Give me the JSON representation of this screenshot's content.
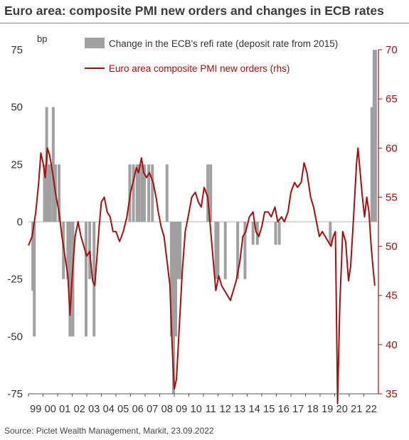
{
  "title": "Euro area: composite PMI new orders and changes in ECB rates",
  "source": "Source: Pictet Wealth Management, Markit, 23.09.2022",
  "colors": {
    "bars": "#a0a0a0",
    "line": "#a50f0f",
    "text": "#333333",
    "axis_right": "#a50f0f"
  },
  "chart_data": {
    "type": "bar+line",
    "left_axis": {
      "unit_label": "bp",
      "ylim": [
        -75,
        75
      ],
      "ticks": [
        75,
        50,
        25,
        0,
        -25,
        -50,
        -75
      ]
    },
    "right_axis": {
      "ylim": [
        35,
        70
      ],
      "ticks": [
        70,
        65,
        60,
        55,
        50,
        45,
        40,
        35
      ]
    },
    "x_axis": {
      "range": [
        1999,
        2023
      ],
      "tick_labels": [
        "99",
        "00",
        "01",
        "02",
        "03",
        "04",
        "05",
        "06",
        "07",
        "08",
        "09",
        "10",
        "11",
        "12",
        "13",
        "14",
        "15",
        "16",
        "17",
        "18",
        "19",
        "20",
        "21",
        "22"
      ]
    },
    "series": [
      {
        "name": "Change in the ECB's refi rate (deposit rate from 2015)",
        "type": "bar",
        "axis": "left",
        "points": [
          [
            1999.3,
            -30
          ],
          [
            1999.4,
            -50
          ],
          [
            2000.1,
            25
          ],
          [
            2000.25,
            50
          ],
          [
            2000.35,
            25
          ],
          [
            2000.5,
            25
          ],
          [
            2000.7,
            50
          ],
          [
            2000.85,
            25
          ],
          [
            2001.1,
            25
          ],
          [
            2001.4,
            -25
          ],
          [
            2001.7,
            -25
          ],
          [
            2001.85,
            -50
          ],
          [
            2002.05,
            -50
          ],
          [
            2002.95,
            -50
          ],
          [
            2003.2,
            -25
          ],
          [
            2003.5,
            -50
          ],
          [
            2005.95,
            25
          ],
          [
            2006.2,
            25
          ],
          [
            2006.45,
            25
          ],
          [
            2006.6,
            25
          ],
          [
            2006.8,
            25
          ],
          [
            2006.95,
            25
          ],
          [
            2007.25,
            25
          ],
          [
            2007.5,
            25
          ],
          [
            2008.5,
            25
          ],
          [
            2008.8,
            -50
          ],
          [
            2008.95,
            -75
          ],
          [
            2009.1,
            -50
          ],
          [
            2009.25,
            -25
          ],
          [
            2009.4,
            -25
          ],
          [
            2011.3,
            25
          ],
          [
            2011.5,
            25
          ],
          [
            2011.85,
            -25
          ],
          [
            2012.0,
            -25
          ],
          [
            2012.5,
            -25
          ],
          [
            2013.35,
            -25
          ],
          [
            2013.85,
            -25
          ],
          [
            2014.4,
            -10
          ],
          [
            2014.7,
            -10
          ],
          [
            2015.95,
            -10
          ],
          [
            2016.2,
            -10
          ],
          [
            2019.7,
            -10
          ],
          [
            2022.55,
            50
          ],
          [
            2022.7,
            75
          ],
          [
            2022.8,
            75
          ]
        ]
      },
      {
        "name": "Euro area composite PMI new orders (rhs)",
        "type": "line",
        "axis": "right",
        "points": [
          [
            1999.0,
            50.1
          ],
          [
            1999.25,
            51.0
          ],
          [
            1999.5,
            53.5
          ],
          [
            1999.7,
            56.5
          ],
          [
            1999.85,
            59.5
          ],
          [
            2000.0,
            58.5
          ],
          [
            2000.15,
            57.0
          ],
          [
            2000.3,
            60.0
          ],
          [
            2000.45,
            59.3
          ],
          [
            2000.6,
            58.0
          ],
          [
            2000.75,
            56.5
          ],
          [
            2000.9,
            55.0
          ],
          [
            2001.1,
            53.5
          ],
          [
            2001.3,
            51.0
          ],
          [
            2001.5,
            49.0
          ],
          [
            2001.7,
            47.0
          ],
          [
            2001.85,
            43.0
          ],
          [
            2002.0,
            47.0
          ],
          [
            2002.2,
            51.0
          ],
          [
            2002.4,
            52.5
          ],
          [
            2002.6,
            51.0
          ],
          [
            2002.8,
            50.0
          ],
          [
            2003.0,
            49.0
          ],
          [
            2003.2,
            49.5
          ],
          [
            2003.4,
            46.5
          ],
          [
            2003.55,
            46.0
          ],
          [
            2003.7,
            49.0
          ],
          [
            2003.85,
            52.0
          ],
          [
            2004.0,
            54.5
          ],
          [
            2004.2,
            55.0
          ],
          [
            2004.4,
            53.5
          ],
          [
            2004.6,
            53.0
          ],
          [
            2004.8,
            51.5
          ],
          [
            2005.0,
            51.5
          ],
          [
            2005.25,
            50.5
          ],
          [
            2005.5,
            51.5
          ],
          [
            2005.75,
            53.0
          ],
          [
            2006.0,
            55.5
          ],
          [
            2006.25,
            57.0
          ],
          [
            2006.4,
            58.0
          ],
          [
            2006.55,
            57.5
          ],
          [
            2006.75,
            59.0
          ],
          [
            2006.9,
            57.5
          ],
          [
            2007.1,
            57.0
          ],
          [
            2007.3,
            57.5
          ],
          [
            2007.55,
            56.5
          ],
          [
            2007.75,
            55.0
          ],
          [
            2007.9,
            53.5
          ],
          [
            2008.1,
            52.0
          ],
          [
            2008.3,
            51.0
          ],
          [
            2008.5,
            48.5
          ],
          [
            2008.7,
            46.0
          ],
          [
            2008.85,
            40.0
          ],
          [
            2009.0,
            35.5
          ],
          [
            2009.15,
            36.5
          ],
          [
            2009.35,
            42.0
          ],
          [
            2009.55,
            47.5
          ],
          [
            2009.75,
            51.5
          ],
          [
            2009.95,
            53.0
          ],
          [
            2010.2,
            55.0
          ],
          [
            2010.45,
            55.5
          ],
          [
            2010.65,
            54.5
          ],
          [
            2010.85,
            54.0
          ],
          [
            2011.05,
            56.0
          ],
          [
            2011.3,
            55.0
          ],
          [
            2011.5,
            51.5
          ],
          [
            2011.7,
            48.0
          ],
          [
            2011.85,
            45.5
          ],
          [
            2012.05,
            47.0
          ],
          [
            2012.25,
            46.0
          ],
          [
            2012.45,
            45.5
          ],
          [
            2012.65,
            45.0
          ],
          [
            2012.85,
            44.5
          ],
          [
            2013.05,
            45.5
          ],
          [
            2013.25,
            46.5
          ],
          [
            2013.5,
            48.5
          ],
          [
            2013.7,
            51.0
          ],
          [
            2013.9,
            51.5
          ],
          [
            2014.15,
            53.0
          ],
          [
            2014.4,
            53.5
          ],
          [
            2014.6,
            51.5
          ],
          [
            2014.8,
            51.0
          ],
          [
            2015.0,
            52.0
          ],
          [
            2015.2,
            53.5
          ],
          [
            2015.45,
            53.5
          ],
          [
            2015.65,
            53.0
          ],
          [
            2015.9,
            54.0
          ],
          [
            2016.1,
            52.5
          ],
          [
            2016.35,
            53.0
          ],
          [
            2016.55,
            52.5
          ],
          [
            2016.8,
            53.5
          ],
          [
            2017.0,
            55.5
          ],
          [
            2017.25,
            56.5
          ],
          [
            2017.45,
            56.0
          ],
          [
            2017.7,
            56.5
          ],
          [
            2017.9,
            58.5
          ],
          [
            2018.1,
            57.5
          ],
          [
            2018.35,
            55.0
          ],
          [
            2018.55,
            54.0
          ],
          [
            2018.75,
            52.5
          ],
          [
            2018.95,
            51.0
          ],
          [
            2019.15,
            51.5
          ],
          [
            2019.35,
            51.0
          ],
          [
            2019.55,
            50.5
          ],
          [
            2019.75,
            50.0
          ],
          [
            2019.9,
            51.0
          ],
          [
            2020.05,
            51.5
          ],
          [
            2020.2,
            34.0
          ],
          [
            2020.35,
            44.0
          ],
          [
            2020.55,
            51.5
          ],
          [
            2020.75,
            50.5
          ],
          [
            2020.95,
            46.5
          ],
          [
            2021.1,
            48.0
          ],
          [
            2021.3,
            53.0
          ],
          [
            2021.5,
            58.5
          ],
          [
            2021.6,
            60.0
          ],
          [
            2021.75,
            57.5
          ],
          [
            2021.9,
            55.0
          ],
          [
            2022.05,
            53.0
          ],
          [
            2022.2,
            55.0
          ],
          [
            2022.35,
            53.5
          ],
          [
            2022.5,
            50.0
          ],
          [
            2022.65,
            47.5
          ],
          [
            2022.75,
            46.0
          ]
        ]
      }
    ],
    "grid": false,
    "legend_placement": "top"
  }
}
